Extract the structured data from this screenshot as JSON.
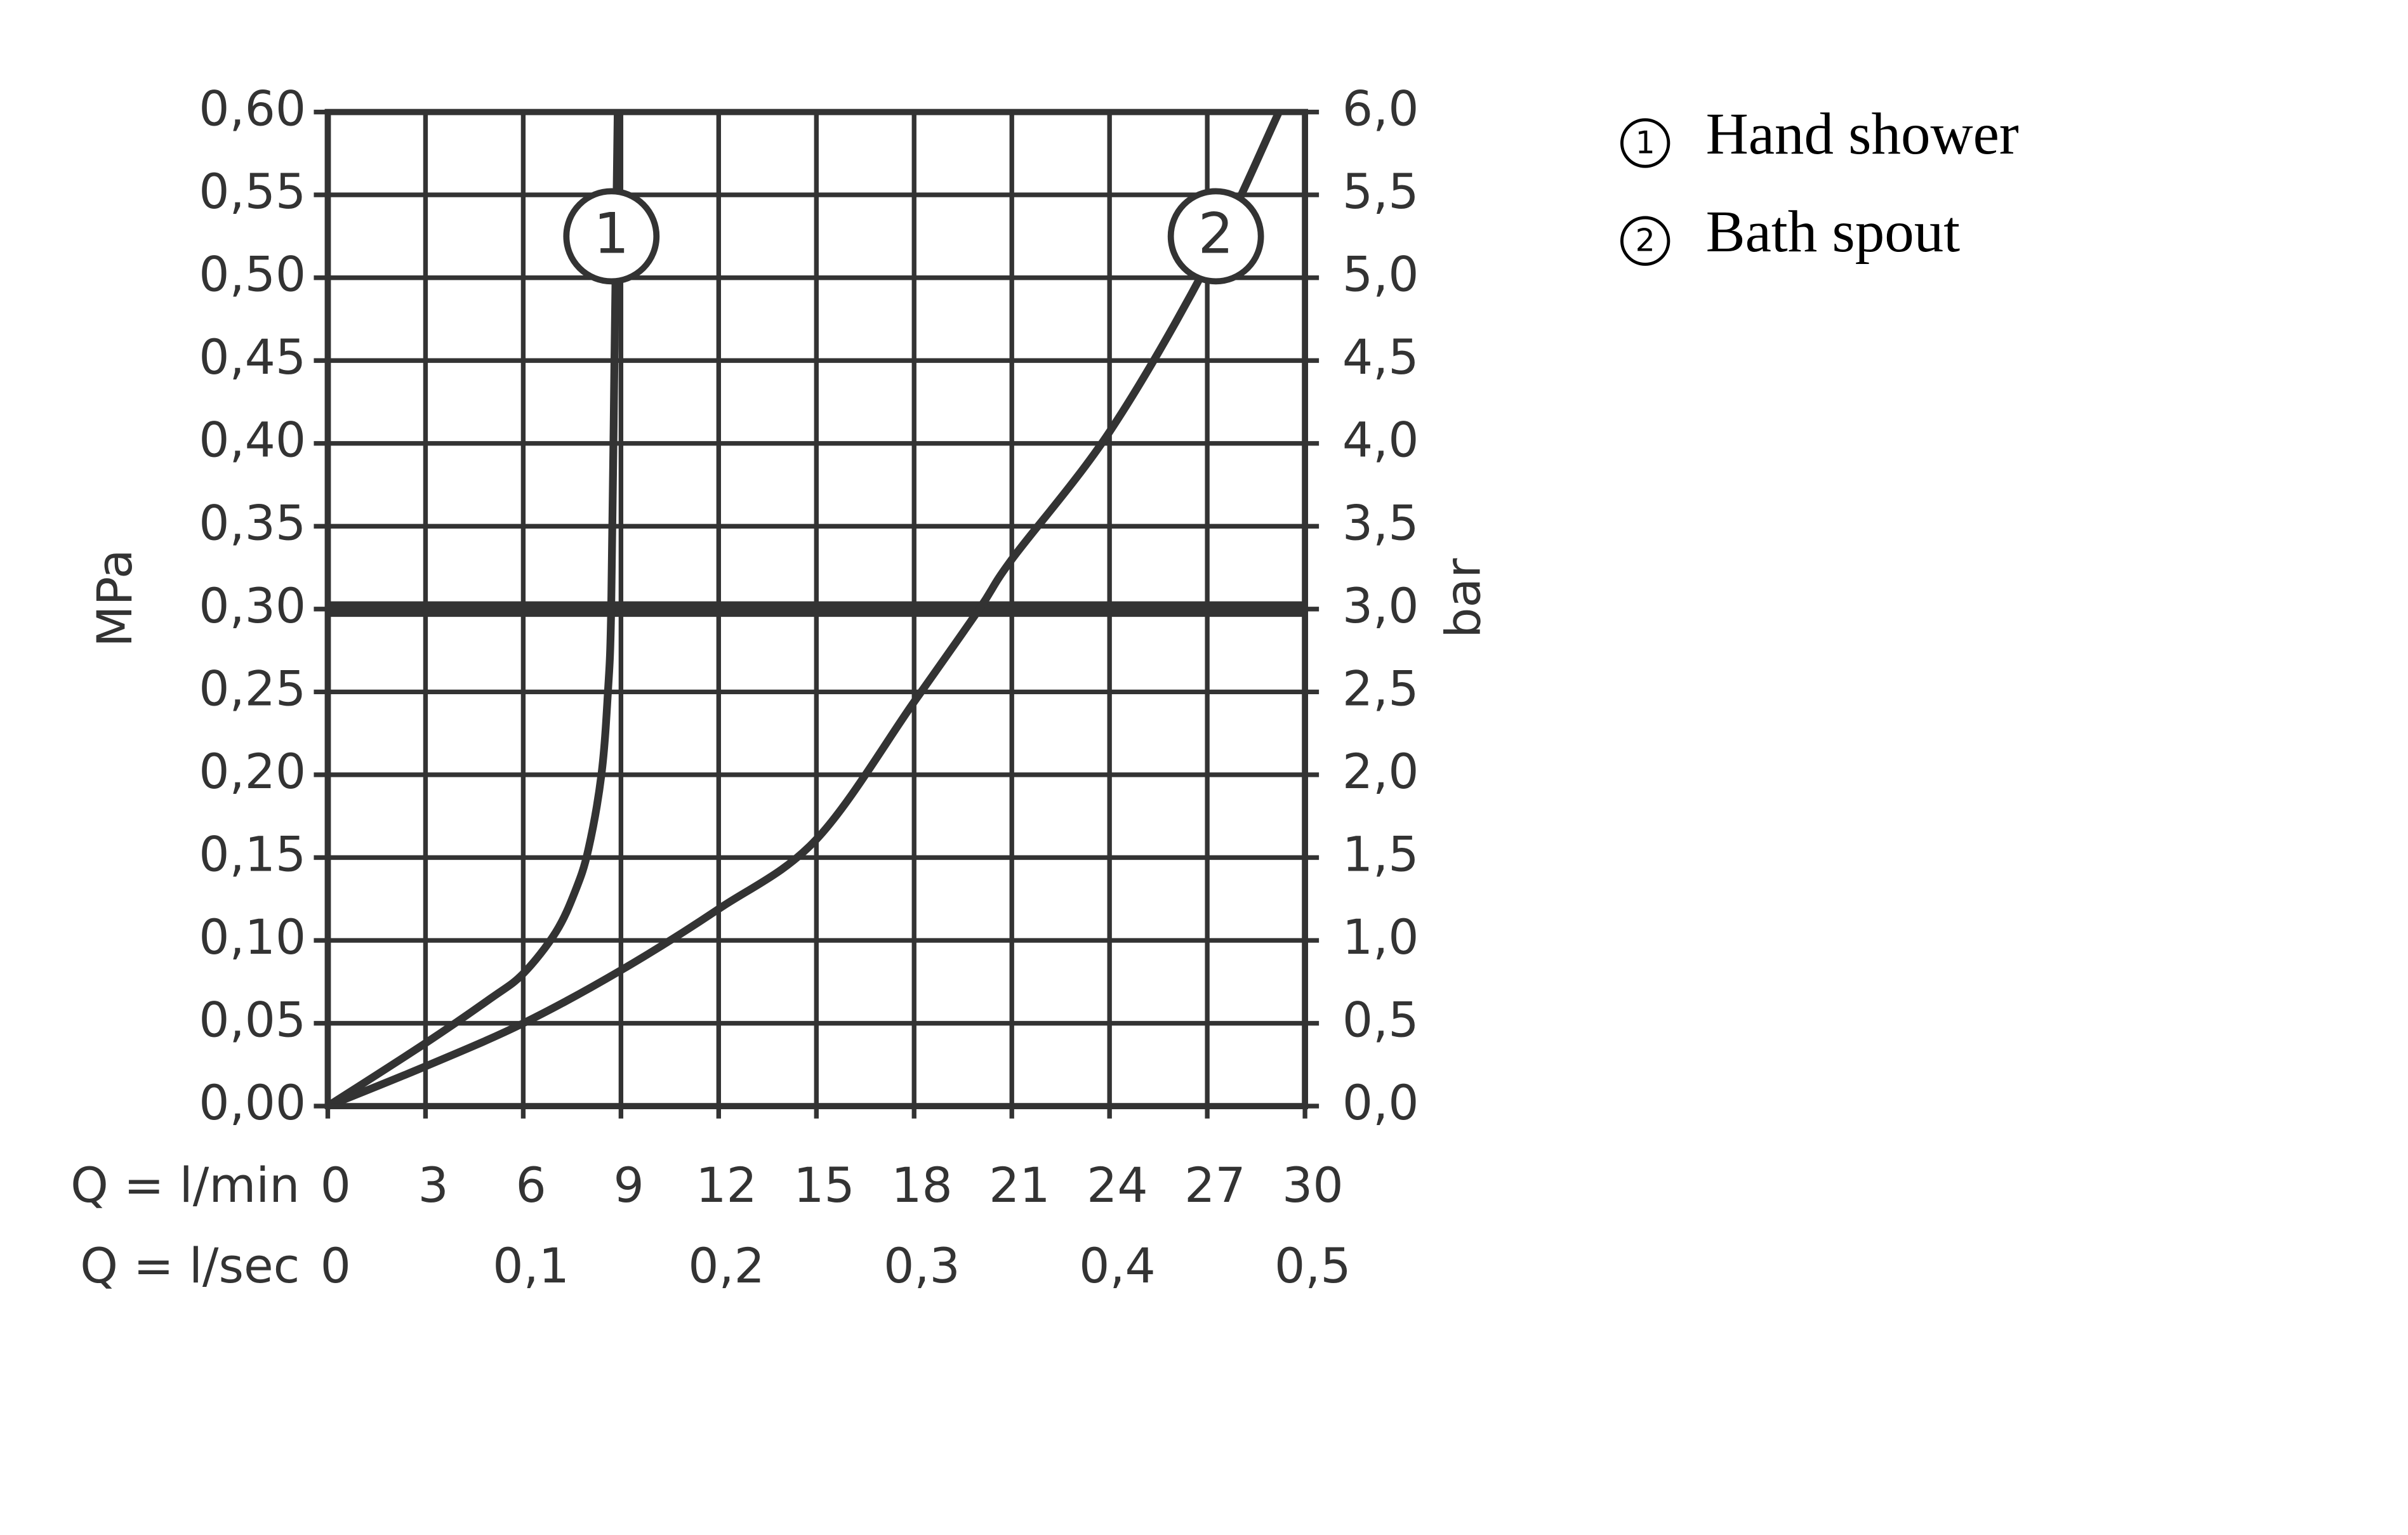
{
  "chart_data": {
    "type": "line",
    "x_label": "Q = l/min",
    "x2_label": "Q = l/sec",
    "y_label": "MPa",
    "y2_label": "bar",
    "xlim": [
      0,
      30
    ],
    "xticks": [
      0,
      3,
      6,
      9,
      12,
      15,
      18,
      21,
      24,
      27,
      30
    ],
    "x2lim": [
      0,
      0.5
    ],
    "x2ticks": [
      0,
      {
        "value": 0.1,
        "label": "0,1"
      },
      {
        "value": 0.2,
        "label": "0,2"
      },
      {
        "value": 0.3,
        "label": "0,3"
      },
      {
        "value": 0.4,
        "label": "0,4"
      },
      {
        "value": 0.5,
        "label": "0,5"
      }
    ],
    "ylim": [
      0,
      0.6
    ],
    "yticks": [
      {
        "value": 0,
        "label": "0,00"
      },
      {
        "value": 0.05,
        "label": "0,05"
      },
      {
        "value": 0.1,
        "label": "0,10"
      },
      {
        "value": 0.15,
        "label": "0,15"
      },
      {
        "value": 0.2,
        "label": "0,20"
      },
      {
        "value": 0.25,
        "label": "0,25"
      },
      {
        "value": 0.3,
        "label": "0,30"
      },
      {
        "value": 0.35,
        "label": "0,35"
      },
      {
        "value": 0.4,
        "label": "0,40"
      },
      {
        "value": 0.45,
        "label": "0,45"
      },
      {
        "value": 0.5,
        "label": "0,50"
      },
      {
        "value": 0.55,
        "label": "0,55"
      },
      {
        "value": 0.6,
        "label": "0,60"
      }
    ],
    "y2lim": [
      0,
      6
    ],
    "y2ticks": [
      {
        "value": 0,
        "label": "0,0"
      },
      {
        "value": 0.5,
        "label": "0,5"
      },
      {
        "value": 1,
        "label": "1,0"
      },
      {
        "value": 1.5,
        "label": "1,5"
      },
      {
        "value": 2,
        "label": "2,0"
      },
      {
        "value": 2.5,
        "label": "2,5"
      },
      {
        "value": 3,
        "label": "3,0"
      },
      {
        "value": 3.5,
        "label": "3,5"
      },
      {
        "value": 4,
        "label": "4,0"
      },
      {
        "value": 4.5,
        "label": "4,5"
      },
      {
        "value": 5,
        "label": "5,0"
      },
      {
        "value": 5.5,
        "label": "5,5"
      },
      {
        "value": 6,
        "label": "6,0"
      }
    ],
    "grid": true,
    "reference_line": 0.3,
    "series": [
      {
        "name": "Hand shower",
        "marker": "1",
        "color": "#333333",
        "x": [
          0,
          3,
          5,
          6,
          7,
          7.6,
          8,
          8.4,
          8.6,
          8.7,
          8.8,
          8.9
        ],
        "values": [
          0,
          0.038,
          0.065,
          0.08,
          0.105,
          0.13,
          0.155,
          0.2,
          0.25,
          0.3,
          0.45,
          0.6
        ]
      },
      {
        "name": "Bath spout",
        "marker": "2",
        "color": "#333333",
        "x": [
          0,
          3,
          6,
          9,
          12,
          15,
          18,
          20,
          21,
          24,
          27,
          29.2
        ],
        "values": [
          0,
          0.024,
          0.05,
          0.082,
          0.119,
          0.161,
          0.244,
          0.3,
          0.33,
          0.407,
          0.508,
          0.6
        ]
      }
    ]
  }
}
